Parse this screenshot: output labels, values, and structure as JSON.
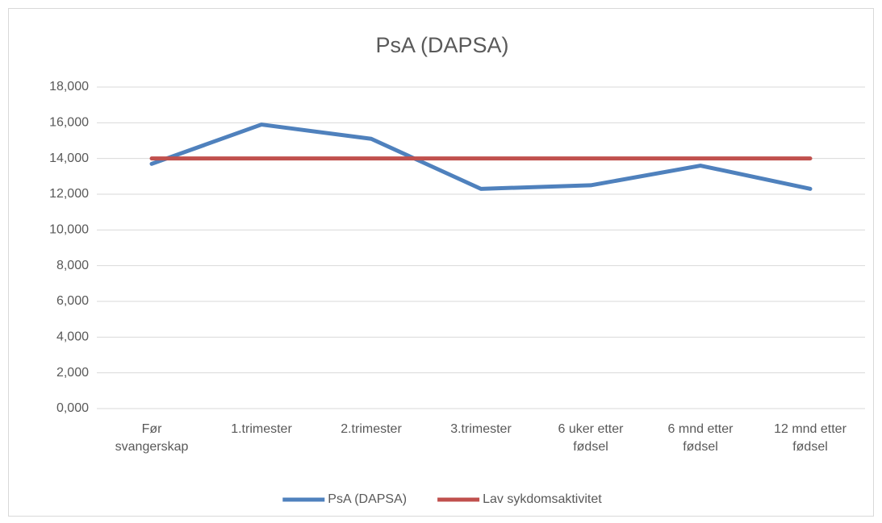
{
  "chart_data": {
    "type": "line",
    "title": "PsA (DAPSA)",
    "categories": [
      "Før svangerskap",
      "1.trimester",
      "2.trimester",
      "3.trimester",
      "6 uker etter fødsel",
      "6 mnd etter fødsel",
      "12 mnd etter fødsel"
    ],
    "series": [
      {
        "name": "PsA (DAPSA)",
        "color": "#4f81bd",
        "values": [
          13.7,
          15.9,
          15.1,
          12.3,
          12.5,
          13.6,
          12.3
        ]
      },
      {
        "name": "Lav sykdomsaktivitet",
        "color": "#c0504d",
        "values": [
          14,
          14,
          14,
          14,
          14,
          14,
          14
        ]
      }
    ],
    "ylim": [
      0,
      18
    ],
    "yticks": [
      {
        "value": 0,
        "label": "0,000"
      },
      {
        "value": 2,
        "label": "2,000"
      },
      {
        "value": 4,
        "label": "4,000"
      },
      {
        "value": 6,
        "label": "6,000"
      },
      {
        "value": 8,
        "label": "8,000"
      },
      {
        "value": 10,
        "label": "10,000"
      },
      {
        "value": 12,
        "label": "12,000"
      },
      {
        "value": 14,
        "label": "14,000"
      },
      {
        "value": 16,
        "label": "16,000"
      },
      {
        "value": 18,
        "label": "18,000"
      }
    ],
    "grid": true,
    "legend": "bottom"
  }
}
